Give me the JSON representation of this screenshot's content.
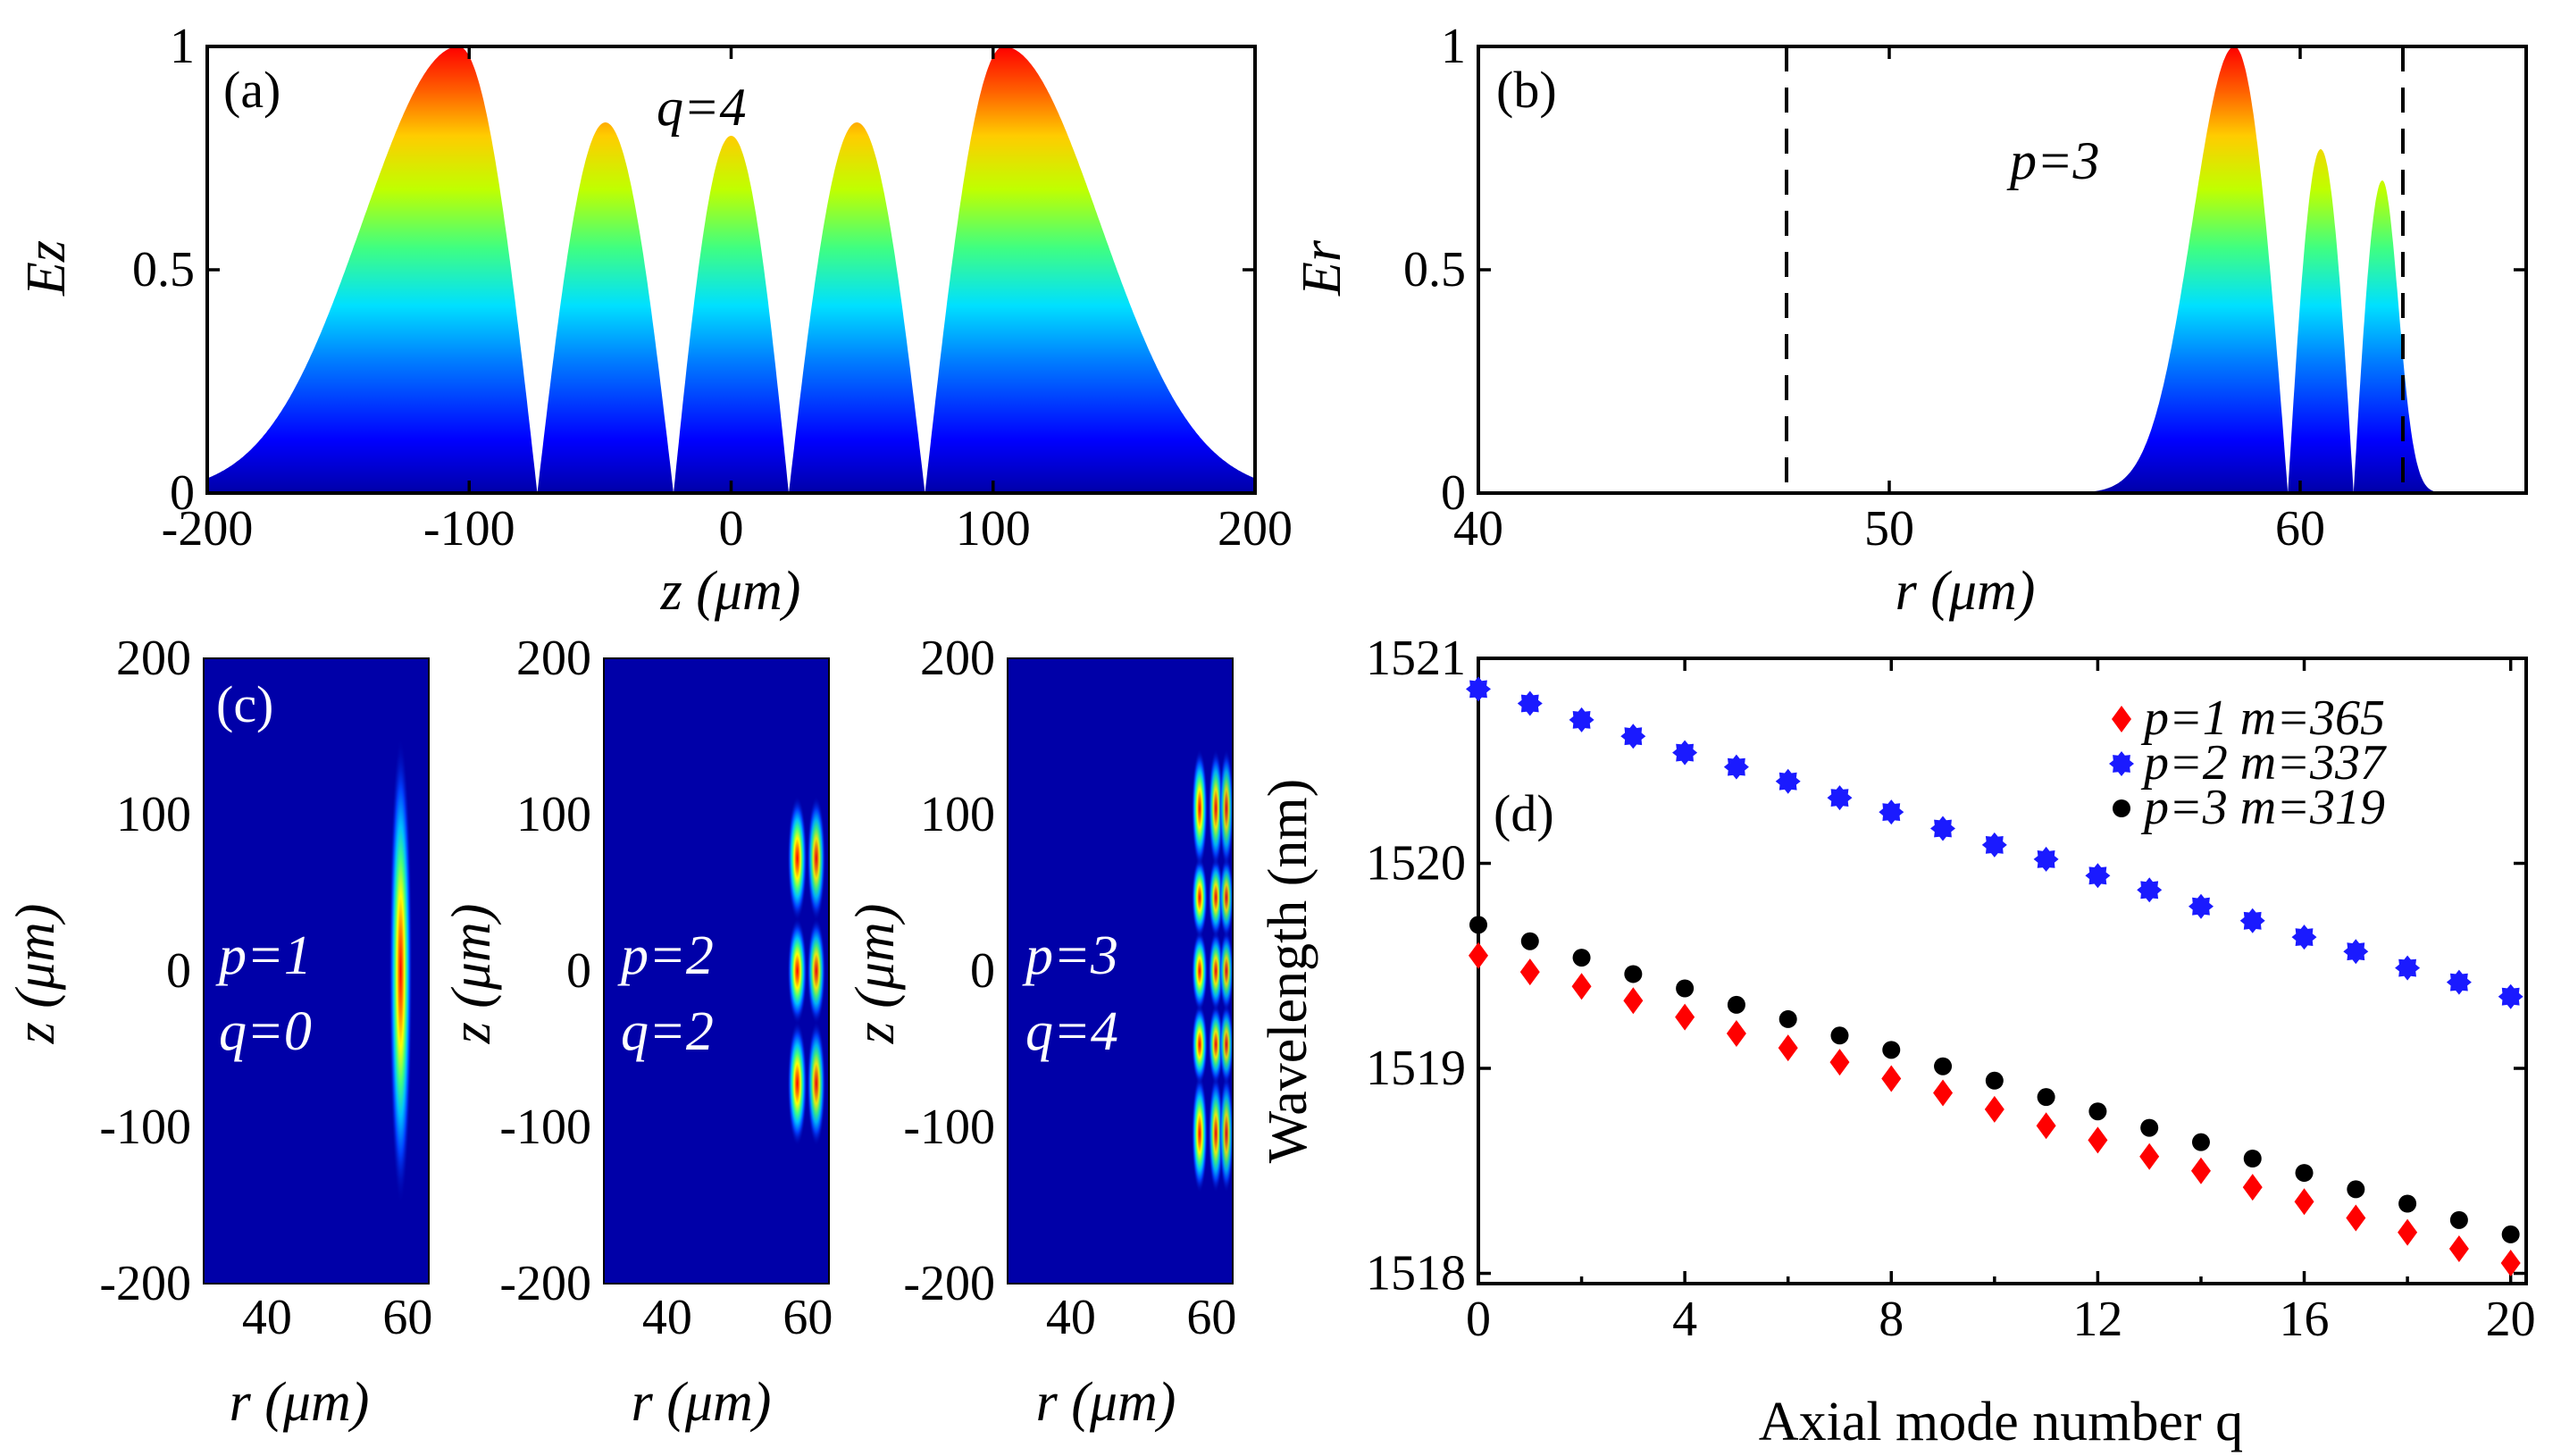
{
  "colors": {
    "heat_low": "#0000a8",
    "heat_high": "#ff0000",
    "p1": "#ff0000",
    "p2": "#1a1aff",
    "p3": "#000000"
  },
  "chart_data": [
    {
      "id": "a",
      "type": "area",
      "panel_label": "(a)",
      "xlabel": "z (μm)",
      "ylabel": "Ez",
      "xlim": [
        -200,
        200
      ],
      "ylim": [
        0,
        1
      ],
      "xticks": [
        "-200",
        "-100",
        "0",
        "100",
        "200"
      ],
      "yticks": [
        "0",
        "0.5",
        "1"
      ],
      "annotation": "q=4",
      "lobes": [
        {
          "center": -104,
          "peak": 1.0
        },
        {
          "center": -47,
          "peak": 0.83
        },
        {
          "center": 0,
          "peak": 0.8
        },
        {
          "center": 47,
          "peak": 0.83
        },
        {
          "center": 104,
          "peak": 1.0
        }
      ],
      "nodes": [
        -74,
        -22,
        22,
        74
      ]
    },
    {
      "id": "b",
      "type": "area",
      "panel_label": "(b)",
      "xlabel": "r (μm)",
      "ylabel": "Er",
      "xlim": [
        40,
        65.5
      ],
      "ylim": [
        0,
        1
      ],
      "xticks": [
        "40",
        "50",
        "60"
      ],
      "yticks": [
        "0",
        "0.5",
        "1"
      ],
      "annotation": "p=3",
      "boundaries": [
        47.5,
        62.5
      ],
      "lobes": [
        {
          "center": 58.4,
          "peak": 1.0
        },
        {
          "center": 60.5,
          "peak": 0.77
        },
        {
          "center": 62.0,
          "peak": 0.7
        }
      ],
      "nodes": [
        59.7,
        61.3
      ]
    },
    {
      "id": "c",
      "type": "heatmap",
      "panel_label": "(c)",
      "xlabel": "r (μm)",
      "ylabel": "z (μm)",
      "xlim": [
        31,
        63
      ],
      "ylim": [
        -200,
        200
      ],
      "xticks": [
        "40",
        "60"
      ],
      "yticks": [
        "200",
        "100",
        "0",
        "-100",
        "-200"
      ],
      "maps": [
        {
          "p_label": "p=1",
          "q_label": "q=0",
          "p": 1,
          "q": 0,
          "r_columns": [
            59.0
          ],
          "z_lobes": [
            0
          ]
        },
        {
          "p_label": "p=2",
          "q_label": "q=2",
          "p": 2,
          "q": 2,
          "r_columns": [
            58.5,
            61.2
          ],
          "z_lobes": [
            -72,
            0,
            72
          ]
        },
        {
          "p_label": "p=3",
          "q_label": "q=4",
          "p": 3,
          "q": 4,
          "r_columns": [
            58.3,
            60.6,
            62.1
          ],
          "z_lobes": [
            -104,
            -47,
            0,
            47,
            104
          ]
        }
      ]
    },
    {
      "id": "d",
      "type": "scatter",
      "panel_label": "(d)",
      "xlabel": "Axial mode number q",
      "ylabel": "Wavelength (nm)",
      "xlim": [
        0,
        20.3
      ],
      "ylim": [
        1517.95,
        1521.0
      ],
      "xticks": [
        "0",
        "4",
        "8",
        "12",
        "16",
        "20"
      ],
      "yticks": [
        "1518",
        "1519",
        "1520",
        "1521"
      ],
      "legend_position": "top-right",
      "x": [
        0,
        1,
        2,
        3,
        4,
        5,
        6,
        7,
        8,
        9,
        10,
        11,
        12,
        13,
        14,
        15,
        16,
        17,
        18,
        19,
        20
      ],
      "series": [
        {
          "name": "p=1 m=365",
          "color": "#ff0000",
          "marker": "diamond",
          "values": [
            1519.55,
            1519.47,
            1519.4,
            1519.33,
            1519.25,
            1519.17,
            1519.1,
            1519.03,
            1518.95,
            1518.88,
            1518.8,
            1518.72,
            1518.65,
            1518.57,
            1518.5,
            1518.42,
            1518.35,
            1518.27,
            1518.2,
            1518.12,
            1518.05
          ]
        },
        {
          "name": "p=2 m=337",
          "color": "#1a1aff",
          "marker": "star",
          "values": [
            1520.85,
            1520.78,
            1520.7,
            1520.62,
            1520.54,
            1520.47,
            1520.4,
            1520.32,
            1520.25,
            1520.17,
            1520.09,
            1520.02,
            1519.94,
            1519.87,
            1519.79,
            1519.72,
            1519.64,
            1519.57,
            1519.49,
            1519.42,
            1519.35
          ]
        },
        {
          "name": "p=3 m=319",
          "color": "#000000",
          "marker": "circle",
          "values": [
            1519.7,
            1519.62,
            1519.54,
            1519.46,
            1519.39,
            1519.31,
            1519.24,
            1519.16,
            1519.09,
            1519.01,
            1518.94,
            1518.86,
            1518.79,
            1518.71,
            1518.64,
            1518.56,
            1518.49,
            1518.41,
            1518.34,
            1518.26,
            1518.19
          ]
        }
      ]
    }
  ]
}
